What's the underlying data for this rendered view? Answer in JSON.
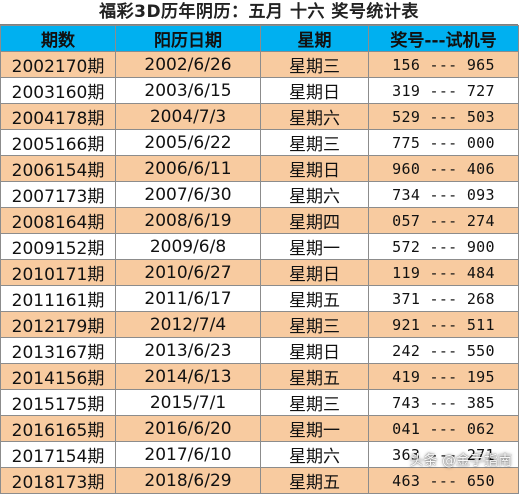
{
  "title": "福彩3D历年阴历：五月  十六  奖号统计表",
  "columns": [
    "期数",
    "阳历日期",
    "星期",
    "奖号---试机号"
  ],
  "rows": [
    {
      "issue": "2002170期",
      "date": "2002/6/26",
      "weekday": "星期三",
      "numbers": "156 --- 965"
    },
    {
      "issue": "2003160期",
      "date": "2003/6/15",
      "weekday": "星期日",
      "numbers": "319 --- 727"
    },
    {
      "issue": "2004178期",
      "date": "2004/7/3",
      "weekday": "星期六",
      "numbers": "529 --- 503"
    },
    {
      "issue": "2005166期",
      "date": "2005/6/22",
      "weekday": "星期三",
      "numbers": "775 --- 000"
    },
    {
      "issue": "2006154期",
      "date": "2006/6/11",
      "weekday": "星期日",
      "numbers": "960 --- 406"
    },
    {
      "issue": "2007173期",
      "date": "2007/6/30",
      "weekday": "星期六",
      "numbers": "734 --- 093"
    },
    {
      "issue": "2008164期",
      "date": "2008/6/19",
      "weekday": "星期四",
      "numbers": "057 --- 274"
    },
    {
      "issue": "2009152期",
      "date": "2009/6/8",
      "weekday": "星期一",
      "numbers": "572 --- 900"
    },
    {
      "issue": "2010171期",
      "date": "2010/6/27",
      "weekday": "星期日",
      "numbers": "119 --- 484"
    },
    {
      "issue": "2011161期",
      "date": "2011/6/17",
      "weekday": "星期五",
      "numbers": "371 --- 268"
    },
    {
      "issue": "2012179期",
      "date": "2012/7/4",
      "weekday": "星期三",
      "numbers": "921 --- 511"
    },
    {
      "issue": "2013167期",
      "date": "2013/6/23",
      "weekday": "星期日",
      "numbers": "242 --- 550"
    },
    {
      "issue": "2014156期",
      "date": "2014/6/13",
      "weekday": "星期五",
      "numbers": "419 --- 195"
    },
    {
      "issue": "2015175期",
      "date": "2015/7/1",
      "weekday": "星期三",
      "numbers": "743 --- 385"
    },
    {
      "issue": "2016165期",
      "date": "2016/6/20",
      "weekday": "星期一",
      "numbers": "041 --- 062"
    },
    {
      "issue": "2017154期",
      "date": "2017/6/10",
      "weekday": "星期六",
      "numbers": "363 --- 271"
    },
    {
      "issue": "2018173期",
      "date": "2018/6/29",
      "weekday": "星期五",
      "numbers": "463 --- 650"
    }
  ],
  "watermark": "头条 @金手指南",
  "colors": {
    "header_bg": "#00b0f0",
    "alt_row_bg": "#f8cba0",
    "plain_row_bg": "#ffffff"
  }
}
